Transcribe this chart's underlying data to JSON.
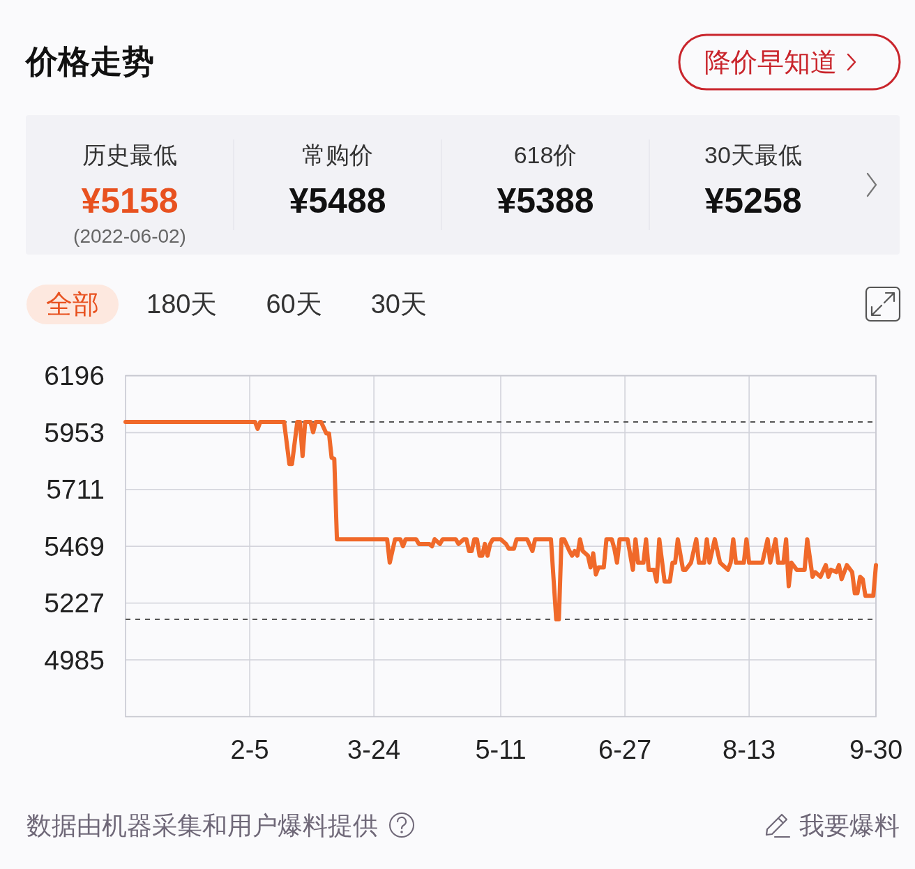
{
  "chart_data": [
    {
      "type": "other",
      "title": "价格走势",
      "categories": [
        "历史最低",
        "常购价",
        "618价",
        "30天最低"
      ],
      "value_labels": [
        "¥5158",
        "¥5488",
        "¥5388",
        "¥5258"
      ],
      "annotations": [
        "(2022-06-02)",
        "降价早知道"
      ]
    },
    {
      "type": "line",
      "x": [
        "2021-12-20",
        "2022-02-07",
        "2022-02-08",
        "2022-02-09",
        "2022-02-18",
        "2022-02-20",
        "2022-02-21",
        "2022-02-23",
        "2022-02-24",
        "2022-02-25",
        "2022-02-26",
        "2022-02-28",
        "2022-03-01",
        "2022-03-02",
        "2022-03-04",
        "2022-03-06",
        "2022-03-07",
        "2022-03-08",
        "2022-03-09",
        "2022-03-10",
        "2022-03-29",
        "2022-03-30",
        "2022-04-01",
        "2022-04-03",
        "2022-04-04",
        "2022-04-05",
        "2022-04-09",
        "2022-04-10",
        "2022-04-14",
        "2022-04-15",
        "2022-04-16",
        "2022-04-18",
        "2022-04-19",
        "2022-04-24",
        "2022-04-25",
        "2022-04-27",
        "2022-04-28",
        "2022-04-29",
        "2022-04-30",
        "2022-05-01",
        "2022-05-02",
        "2022-05-03",
        "2022-05-04",
        "2022-05-05",
        "2022-05-06",
        "2022-05-07",
        "2022-05-08",
        "2022-05-11",
        "2022-05-13",
        "2022-05-14",
        "2022-05-16",
        "2022-05-17",
        "2022-05-21",
        "2022-05-23",
        "2022-05-24",
        "2022-05-30",
        "2022-06-01",
        "2022-06-02",
        "2022-06-03",
        "2022-06-04",
        "2022-06-06",
        "2022-06-07",
        "2022-06-08",
        "2022-06-09",
        "2022-06-10",
        "2022-06-11",
        "2022-06-13",
        "2022-06-14",
        "2022-06-15",
        "2022-06-16",
        "2022-06-17",
        "2022-06-19",
        "2022-06-20",
        "2022-06-22",
        "2022-06-23",
        "2022-06-24",
        "2022-06-25",
        "2022-06-28",
        "2022-06-30",
        "2022-07-01",
        "2022-07-02",
        "2022-07-04",
        "2022-07-05",
        "2022-07-06",
        "2022-07-08",
        "2022-07-09",
        "2022-07-10",
        "2022-07-12",
        "2022-07-14",
        "2022-07-15",
        "2022-07-16",
        "2022-07-17",
        "2022-07-19",
        "2022-07-20",
        "2022-07-22",
        "2022-07-24",
        "2022-07-25",
        "2022-07-27",
        "2022-07-28",
        "2022-07-29",
        "2022-07-31",
        "2022-08-02",
        "2022-08-05",
        "2022-08-06",
        "2022-08-07",
        "2022-08-08",
        "2022-08-11",
        "2022-08-12",
        "2022-08-13",
        "2022-08-18",
        "2022-08-20",
        "2022-08-21",
        "2022-08-23",
        "2022-08-24",
        "2022-08-26",
        "2022-08-27",
        "2022-08-28",
        "2022-08-29",
        "2022-08-31",
        "2022-09-03",
        "2022-09-04",
        "2022-09-06",
        "2022-09-07",
        "2022-09-09",
        "2022-09-11",
        "2022-09-12",
        "2022-09-13",
        "2022-09-15",
        "2022-09-16",
        "2022-09-17",
        "2022-09-19",
        "2022-09-21",
        "2022-09-22",
        "2022-09-23",
        "2022-09-24",
        "2022-09-25",
        "2022-09-26",
        "2022-09-29",
        "2022-09-30"
      ],
      "series": [
        {
          "color": "#f0692a",
          "values": [
            5999,
            5999,
            5969,
            5999,
            5999,
            5820,
            5820,
            5999,
            5999,
            5853,
            5999,
            5999,
            5955,
            5999,
            5999,
            5950,
            5950,
            5846,
            5842,
            5499,
            5499,
            5399,
            5499,
            5499,
            5469,
            5499,
            5499,
            5479,
            5479,
            5469,
            5499,
            5479,
            5499,
            5499,
            5479,
            5499,
            5499,
            5449,
            5449,
            5499,
            5499,
            5429,
            5429,
            5479,
            5429,
            5479,
            5499,
            5499,
            5479,
            5459,
            5459,
            5499,
            5499,
            5449,
            5499,
            5499,
            5158,
            5158,
            5499,
            5499,
            5449,
            5429,
            5449,
            5429,
            5499,
            5449,
            5429,
            5379,
            5439,
            5349,
            5379,
            5379,
            5499,
            5499,
            5459,
            5399,
            5499,
            5499,
            5369,
            5499,
            5399,
            5399,
            5499,
            5369,
            5369,
            5319,
            5499,
            5319,
            5319,
            5399,
            5399,
            5499,
            5369,
            5369,
            5399,
            5499,
            5399,
            5399,
            5499,
            5399,
            5499,
            5399,
            5369,
            5399,
            5499,
            5399,
            5399,
            5499,
            5399,
            5399,
            5499,
            5399,
            5499,
            5399,
            5399,
            5499,
            5299,
            5399,
            5369,
            5369,
            5499,
            5339,
            5359,
            5339,
            5389,
            5339,
            5369,
            5359,
            5389,
            5329,
            5389,
            5359,
            5269,
            5269,
            5339,
            5329,
            5258,
            5258,
            5389
          ]
        }
      ],
      "xlim": [
        "2021-12-20",
        "2022-09-30"
      ],
      "xticks": [
        {
          "value": "2022-02-05",
          "label": "2-5"
        },
        {
          "value": "2022-03-24",
          "label": "3-24"
        },
        {
          "value": "2022-05-11",
          "label": "5-11"
        },
        {
          "value": "2022-06-27",
          "label": "6-27"
        },
        {
          "value": "2022-08-13",
          "label": "8-13"
        },
        {
          "value": "2022-09-30",
          "label": "9-30"
        }
      ],
      "ylim": [
        4743,
        6196
      ],
      "yticks": [
        4985,
        5227,
        5469,
        5711,
        5953,
        6196
      ],
      "grid": true,
      "line_style": "solid",
      "ref_lines": [
        {
          "axis": "y",
          "value": 5999,
          "color": "#555555",
          "line_style": "dashed"
        },
        {
          "axis": "y",
          "value": 5158,
          "color": "#555555",
          "line_style": "dashed"
        }
      ],
      "annotations": [
        "全部",
        "180天",
        "60天",
        "30天",
        "数据由机器采集和用户爆料提供",
        "我要爆料"
      ]
    }
  ]
}
